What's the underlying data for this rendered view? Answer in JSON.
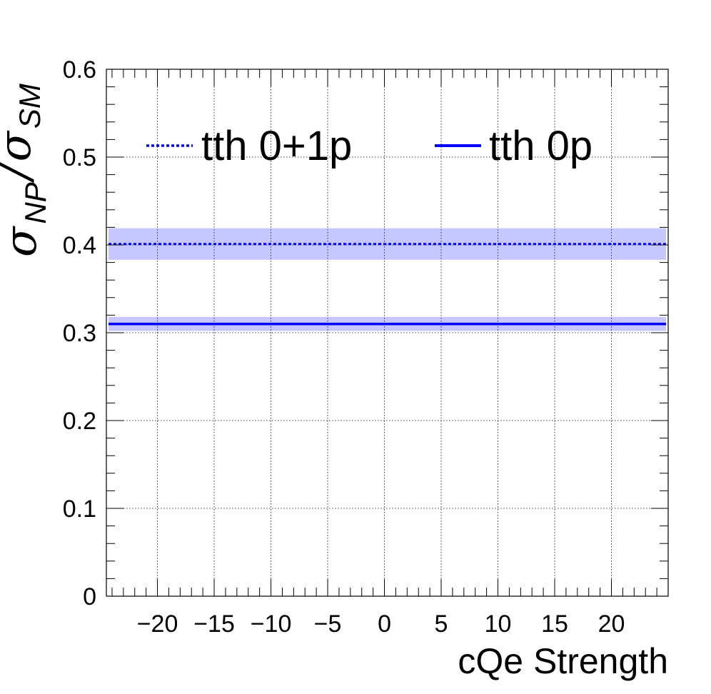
{
  "chart_data": {
    "type": "line",
    "xlabel": "cQe Strength",
    "ylabel": {
      "main1": "σ",
      "sub1": "NP",
      "sep": "/",
      "main2": "σ",
      "sub2": "SM"
    },
    "xlim": [
      -24.5,
      25
    ],
    "ylim": [
      0,
      0.6
    ],
    "xticks": [
      -20,
      -15,
      -10,
      -5,
      0,
      5,
      10,
      15,
      20
    ],
    "xtick_labels": [
      "−20",
      "−15",
      "−10",
      "−5",
      "0",
      "5",
      "10",
      "15",
      "20"
    ],
    "yticks": [
      0,
      0.1,
      0.2,
      0.3,
      0.4,
      0.5,
      0.6
    ],
    "ytick_labels": [
      "0",
      "0.1",
      "0.2",
      "0.3",
      "0.4",
      "0.5",
      "0.6"
    ],
    "grid": true,
    "legend_position": "top",
    "series": [
      {
        "name": "tth 0+1p",
        "style": "dotted",
        "color": "#0000ff",
        "x": [
          -24.5,
          25
        ],
        "y": [
          0.401,
          0.401
        ],
        "band": [
          0.383,
          0.419
        ]
      },
      {
        "name": "tth 0p",
        "style": "solid",
        "color": "#0000ff",
        "x": [
          -24.5,
          25
        ],
        "y": [
          0.31,
          0.31
        ],
        "band": [
          0.302,
          0.318
        ]
      }
    ]
  }
}
